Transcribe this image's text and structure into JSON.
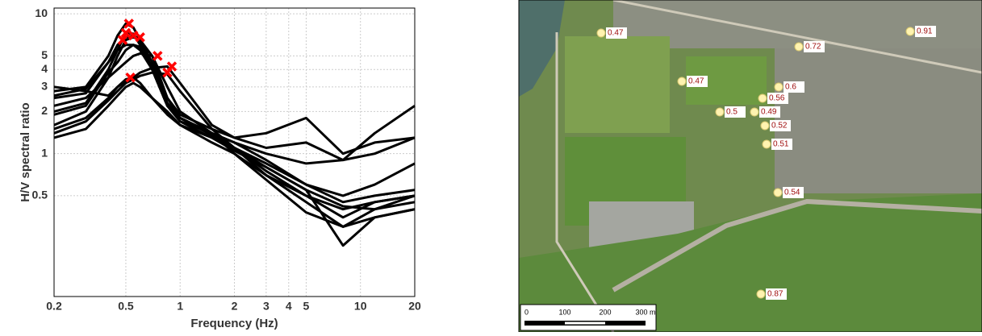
{
  "chart_data": {
    "type": "line",
    "xlabel": "Frequency (Hz)",
    "ylabel": "H/V spectral ratio",
    "log_x": true,
    "log_y": true,
    "grid": true,
    "x": [
      0.2,
      0.3,
      0.4,
      0.45,
      0.5,
      0.55,
      0.6,
      0.7,
      0.85,
      1,
      1.5,
      2,
      3,
      5,
      8,
      12,
      20
    ],
    "xlim": [
      0.2,
      20
    ],
    "xticks": [
      0.2,
      0.5,
      1,
      2,
      3,
      4,
      5,
      10,
      20
    ],
    "ylim": [
      0.095,
      11
    ],
    "yticks": [
      0.5,
      1,
      2,
      3,
      4,
      5,
      10
    ],
    "series": [
      {
        "color": "#000000",
        "values": [
          2.8,
          3.0,
          5,
          7,
          8.5,
          8,
          6.5,
          4,
          2.2,
          1.7,
          1.4,
          1.2,
          0.9,
          0.6,
          0.45,
          0.5,
          0.55
        ]
      },
      {
        "color": "#000000",
        "values": [
          2.5,
          2.7,
          4.5,
          6,
          6.8,
          7,
          6.5,
          5,
          2.5,
          1.8,
          1.4,
          1.1,
          0.8,
          0.55,
          0.42,
          0.4,
          0.45
        ]
      },
      {
        "color": "#000000",
        "values": [
          2.0,
          2.3,
          4,
          5.5,
          7.3,
          7.2,
          6,
          4,
          2.2,
          1.8,
          1.35,
          1.1,
          0.75,
          0.5,
          0.35,
          0.45,
          0.5
        ]
      },
      {
        "color": "#000000",
        "values": [
          1.6,
          2.0,
          3.5,
          5,
          6.5,
          6.8,
          6.5,
          4.5,
          2.5,
          1.9,
          1.5,
          1.1,
          0.7,
          0.45,
          0.3,
          0.35,
          0.4
        ]
      },
      {
        "color": "#000000",
        "values": [
          3.0,
          2.8,
          2.6,
          3,
          3.4,
          3.5,
          3.2,
          2.5,
          2,
          1.6,
          1.2,
          1.0,
          0.7,
          0.5,
          0.4,
          0.45,
          0.5
        ]
      },
      {
        "color": "#000000",
        "values": [
          2.2,
          2.5,
          3.5,
          4,
          4.5,
          5,
          5.2,
          5,
          3,
          2,
          1.4,
          1.2,
          1.0,
          0.85,
          0.9,
          1.0,
          1.3
        ]
      },
      {
        "color": "#000000",
        "values": [
          1.5,
          1.8,
          2.5,
          3,
          3.3,
          3.5,
          3.8,
          4.1,
          4.2,
          3.2,
          1.6,
          1.3,
          1.1,
          1.2,
          0.9,
          1.4,
          2.2
        ]
      },
      {
        "color": "#000000",
        "values": [
          1.4,
          1.7,
          2.4,
          2.8,
          3.2,
          3.4,
          3.6,
          3.8,
          3.7,
          2.8,
          1.5,
          1.3,
          1.4,
          1.8,
          1.0,
          1.2,
          1.3
        ]
      },
      {
        "color": "#000000",
        "values": [
          1.3,
          1.5,
          2.2,
          2.6,
          3,
          3.2,
          3,
          2.5,
          1.9,
          1.6,
          1.3,
          1.05,
          0.8,
          0.55,
          0.22,
          0.35,
          0.4
        ]
      },
      {
        "color": "#000000",
        "values": [
          2.6,
          2.9,
          4.5,
          5.5,
          6,
          6,
          5.5,
          4,
          2.2,
          1.7,
          1.3,
          1.1,
          0.85,
          0.6,
          0.5,
          0.6,
          0.85
        ]
      },
      {
        "color": "#000000",
        "values": [
          1.9,
          2.2,
          3.8,
          4.5,
          5.5,
          6,
          5.8,
          4.2,
          2.3,
          1.8,
          1.4,
          1.0,
          0.65,
          0.38,
          0.3,
          0.4,
          0.5
        ]
      }
    ],
    "peaks": {
      "color": "#ff0000",
      "x": [
        0.52,
        0.48,
        0.5,
        0.55,
        0.6,
        0.53,
        0.75,
        0.85,
        0.9
      ],
      "y": [
        8.5,
        6.5,
        7.3,
        7,
        6.8,
        3.5,
        5,
        3.8,
        4.2
      ]
    }
  },
  "map": {
    "points": [
      0.47,
      0.72,
      0.91,
      0.47,
      0.6,
      0.56,
      0.5,
      0.49,
      0.52,
      0.51,
      0.54,
      0.87
    ],
    "scale_bar": [
      "0",
      "100",
      "200",
      "300 m"
    ]
  }
}
